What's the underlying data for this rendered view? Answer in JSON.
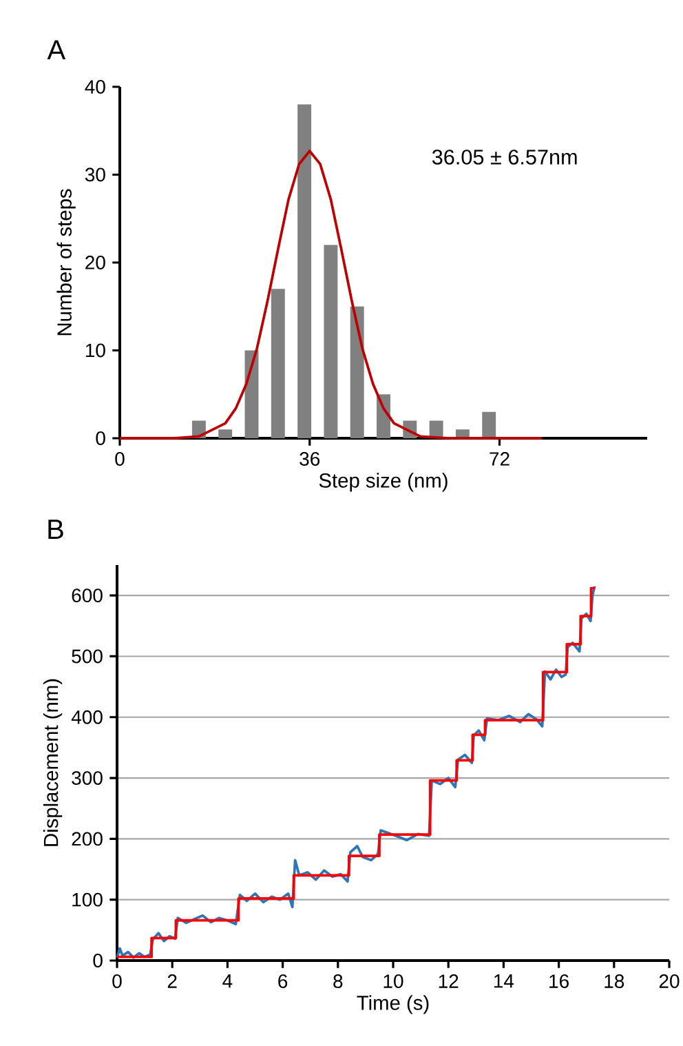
{
  "chart_data": [
    {
      "type": "histogram",
      "title": "A",
      "xlabel": "Step size (nm)",
      "ylabel": "Number of steps",
      "annotations": [
        "36.05 ± 6.57nm"
      ],
      "xlim": [
        0,
        100
      ],
      "xticks": [
        0,
        36,
        72
      ],
      "ylim": [
        0,
        40
      ],
      "yticks": [
        0,
        10,
        20,
        30,
        40
      ],
      "series": [
        {
          "color": "#808080",
          "bins": [
            12.5,
            17.5,
            22.5,
            27.5,
            32.5,
            37.5,
            42.5,
            47.5,
            52.5,
            57.5,
            62.5,
            67.5,
            72.5
          ],
          "values": [
            2,
            1,
            10,
            17,
            38,
            22,
            15,
            5,
            2,
            2,
            1,
            3
          ]
        },
        {
          "type": "line",
          "color": "#c00000",
          "x": [
            0,
            10,
            15,
            20,
            22,
            24,
            26,
            28,
            30,
            32,
            34,
            36,
            38,
            40,
            42,
            44,
            46,
            48,
            50,
            52,
            57,
            62,
            80
          ],
          "values": [
            0,
            0,
            0.2,
            1.7,
            3.4,
            6.2,
            10.2,
            15.6,
            21.5,
            27.2,
            31.2,
            32.7,
            31.2,
            27.2,
            21.5,
            15.6,
            10.2,
            6.2,
            3.4,
            1.7,
            0.2,
            0,
            0
          ]
        }
      ]
    },
    {
      "type": "line",
      "title": "B",
      "xlabel": "Time (s)",
      "ylabel": "Displacement (nm)",
      "grid": "y",
      "xlim": [
        0,
        20
      ],
      "xticks": [
        0,
        2,
        4,
        6,
        8,
        10,
        12,
        14,
        16,
        18,
        20
      ],
      "ylim": [
        0,
        650
      ],
      "yticks": [
        0,
        100,
        200,
        300,
        400,
        500,
        600
      ],
      "series": [
        {
          "color": "#2e75b6",
          "x": [
            0,
            0.1,
            0.2,
            0.4,
            0.6,
            0.8,
            1.0,
            1.2,
            1.3,
            1.5,
            1.7,
            1.9,
            2.1,
            2.2,
            2.5,
            2.8,
            3.1,
            3.4,
            3.7,
            4.0,
            4.3,
            4.45,
            4.7,
            5.0,
            5.3,
            5.6,
            5.9,
            6.2,
            6.35,
            6.45,
            6.6,
            6.9,
            7.2,
            7.5,
            7.8,
            8.1,
            8.35,
            8.45,
            8.7,
            8.9,
            9.2,
            9.45,
            9.55,
            9.8,
            10.1,
            10.5,
            10.9,
            11.3,
            11.4,
            11.7,
            12.0,
            12.25,
            12.35,
            12.6,
            12.85,
            12.92,
            13.1,
            13.3,
            13.4,
            13.8,
            14.2,
            14.6,
            14.9,
            15.2,
            15.4,
            15.5,
            15.7,
            15.9,
            16.1,
            16.25,
            16.32,
            16.5,
            16.75,
            16.82,
            17.0,
            17.15,
            17.22,
            17.3
          ],
          "values": [
            5,
            20,
            8,
            14,
            5,
            12,
            6,
            10,
            35,
            45,
            32,
            40,
            36,
            70,
            62,
            68,
            74,
            63,
            70,
            66,
            60,
            108,
            98,
            110,
            96,
            105,
            100,
            110,
            88,
            165,
            140,
            145,
            133,
            148,
            138,
            142,
            130,
            178,
            188,
            170,
            165,
            175,
            214,
            210,
            205,
            198,
            208,
            205,
            296,
            290,
            300,
            285,
            330,
            338,
            325,
            370,
            378,
            362,
            398,
            395,
            402,
            392,
            405,
            396,
            385,
            475,
            462,
            478,
            466,
            470,
            515,
            522,
            508,
            562,
            570,
            558,
            600,
            615
          ]
        },
        {
          "type": "step",
          "color": "#ff0000",
          "x": [
            0,
            1.25,
            2.13,
            4.4,
            6.4,
            8.4,
            9.5,
            11.34,
            12.3,
            12.88,
            13.33,
            15.43,
            16.29,
            16.79,
            17.17,
            17.3
          ],
          "values": [
            6,
            37,
            66,
            102,
            140,
            172,
            207,
            296,
            329,
            371,
            395,
            474,
            520,
            566,
            612,
            612
          ]
        }
      ]
    }
  ]
}
